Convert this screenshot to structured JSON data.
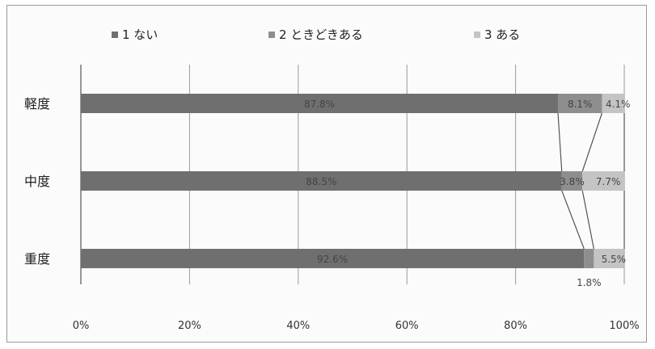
{
  "chart_data": {
    "type": "bar",
    "orientation": "horizontal",
    "stacked": "percent",
    "categories": [
      "軽度",
      "中度",
      "重度"
    ],
    "series": [
      {
        "name": "1 ない",
        "values": [
          87.8,
          88.5,
          92.6
        ],
        "labels": [
          "87.8%",
          "88.5%",
          "92.6%"
        ],
        "color": "#6f6f6f"
      },
      {
        "name": "2 ときどきある",
        "values": [
          8.1,
          3.8,
          1.8
        ],
        "labels": [
          "8.1%",
          "3.8%",
          "1.8%"
        ],
        "color": "#8e8e8e"
      },
      {
        "name": "3 ある",
        "values": [
          4.1,
          7.7,
          5.5
        ],
        "labels": [
          "4.1%",
          "7.7%",
          "5.5%"
        ],
        "color": "#c4c4c4"
      }
    ],
    "x_ticks": [
      "0%",
      "20%",
      "40%",
      "60%",
      "80%",
      "100%"
    ],
    "xlim": [
      0,
      100
    ],
    "legend_position": "top",
    "series_lines": true,
    "grid": true
  }
}
